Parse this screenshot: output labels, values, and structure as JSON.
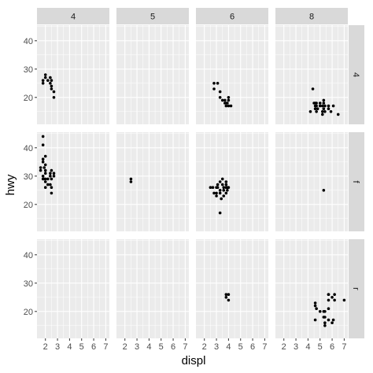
{
  "chart_data": {
    "type": "scatter",
    "layout": "facet_grid",
    "xlabel": "displ",
    "ylabel": "hwy",
    "xlim": [
      1.3,
      7.3
    ],
    "ylim": [
      10.5,
      45.5
    ],
    "x_ticks": [
      2,
      3,
      4,
      5,
      6,
      7
    ],
    "y_ticks": [
      20,
      30,
      40
    ],
    "col_facets": [
      "4",
      "5",
      "6",
      "8"
    ],
    "row_facets": [
      "4",
      "f",
      "r"
    ],
    "colors": {
      "panel_bg": "#ebebeb",
      "grid_major": "#ffffff",
      "strip_bg": "#d9d9d9",
      "point": "#000000",
      "tick_text": "#4d4d4d"
    },
    "panels": [
      {
        "col": "4",
        "row": "4",
        "points": [
          [
            1.8,
            26
          ],
          [
            1.8,
            25
          ],
          [
            2.0,
            28
          ],
          [
            2.0,
            27
          ],
          [
            2.2,
            26
          ],
          [
            2.4,
            27
          ],
          [
            2.4,
            25
          ],
          [
            2.5,
            26
          ],
          [
            2.5,
            24
          ],
          [
            2.5,
            23
          ],
          [
            2.7,
            20
          ],
          [
            2.7,
            22
          ]
        ]
      },
      {
        "col": "5",
        "row": "4",
        "points": []
      },
      {
        "col": "6",
        "row": "4",
        "points": [
          [
            2.8,
            25
          ],
          [
            2.8,
            23
          ],
          [
            3.1,
            25
          ],
          [
            3.3,
            22
          ],
          [
            3.3,
            20
          ],
          [
            3.5,
            19
          ],
          [
            3.7,
            18
          ],
          [
            3.7,
            19
          ],
          [
            3.8,
            18
          ],
          [
            3.8,
            17
          ],
          [
            3.9,
            18
          ],
          [
            4.0,
            20
          ],
          [
            4.0,
            19
          ],
          [
            4.0,
            17
          ],
          [
            4.2,
            17
          ]
        ]
      },
      {
        "col": "8",
        "row": "4",
        "points": [
          [
            4.2,
            15
          ],
          [
            4.4,
            23
          ],
          [
            4.5,
            18
          ],
          [
            4.6,
            17
          ],
          [
            4.6,
            18
          ],
          [
            4.6,
            16
          ],
          [
            4.7,
            17
          ],
          [
            4.7,
            18
          ],
          [
            4.7,
            15
          ],
          [
            4.8,
            16
          ],
          [
            5.0,
            17
          ],
          [
            5.0,
            18
          ],
          [
            5.2,
            14
          ],
          [
            5.2,
            15
          ],
          [
            5.2,
            17
          ],
          [
            5.3,
            19
          ],
          [
            5.3,
            18
          ],
          [
            5.3,
            16
          ],
          [
            5.4,
            17
          ],
          [
            5.4,
            15
          ],
          [
            5.7,
            16
          ],
          [
            5.7,
            17
          ],
          [
            5.9,
            15
          ],
          [
            6.1,
            17
          ],
          [
            6.5,
            14
          ]
        ]
      },
      {
        "col": "4",
        "row": "f",
        "points": [
          [
            1.6,
            33
          ],
          [
            1.6,
            32
          ],
          [
            1.8,
            36
          ],
          [
            1.8,
            35
          ],
          [
            1.8,
            29
          ],
          [
            1.8,
            30
          ],
          [
            1.8,
            44
          ],
          [
            1.8,
            41
          ],
          [
            1.9,
            29
          ],
          [
            1.9,
            33
          ],
          [
            2.0,
            29
          ],
          [
            2.0,
            31
          ],
          [
            2.0,
            32
          ],
          [
            2.0,
            26
          ],
          [
            2.0,
            28
          ],
          [
            2.2,
            27
          ],
          [
            2.2,
            29
          ],
          [
            2.4,
            31
          ],
          [
            2.4,
            30
          ],
          [
            2.4,
            27
          ],
          [
            2.5,
            29
          ],
          [
            2.5,
            26
          ],
          [
            2.5,
            32
          ],
          [
            2.5,
            24
          ],
          [
            2.7,
            30
          ],
          [
            2.7,
            31
          ],
          [
            2.0,
            34
          ],
          [
            2.0,
            37
          ]
        ]
      },
      {
        "col": "5",
        "row": "f",
        "points": [
          [
            2.5,
            29
          ],
          [
            2.5,
            28
          ]
        ]
      },
      {
        "col": "6",
        "row": "f",
        "points": [
          [
            2.5,
            26
          ],
          [
            2.7,
            26
          ],
          [
            2.8,
            24
          ],
          [
            3.0,
            26
          ],
          [
            3.0,
            24
          ],
          [
            3.0,
            23
          ],
          [
            3.1,
            27
          ],
          [
            3.1,
            26
          ],
          [
            3.3,
            25
          ],
          [
            3.3,
            28
          ],
          [
            3.3,
            24
          ],
          [
            3.4,
            22
          ],
          [
            3.5,
            29
          ],
          [
            3.5,
            27
          ],
          [
            3.6,
            26
          ],
          [
            3.6,
            25
          ],
          [
            3.6,
            23
          ],
          [
            3.8,
            28
          ],
          [
            3.8,
            26
          ],
          [
            3.8,
            24
          ],
          [
            3.8,
            27
          ],
          [
            3.9,
            25
          ],
          [
            3.9,
            26
          ],
          [
            4.0,
            26
          ],
          [
            3.3,
            17
          ]
        ]
      },
      {
        "col": "8",
        "row": "f",
        "points": [
          [
            5.3,
            25
          ]
        ]
      },
      {
        "col": "4",
        "row": "r",
        "points": []
      },
      {
        "col": "5",
        "row": "r",
        "points": []
      },
      {
        "col": "6",
        "row": "r",
        "points": [
          [
            3.8,
            26
          ],
          [
            3.8,
            25
          ],
          [
            4.0,
            26
          ],
          [
            4.0,
            24
          ]
        ]
      },
      {
        "col": "8",
        "row": "r",
        "points": [
          [
            4.6,
            17
          ],
          [
            4.6,
            22
          ],
          [
            4.6,
            23
          ],
          [
            4.7,
            21
          ],
          [
            5.0,
            20
          ],
          [
            5.3,
            18
          ],
          [
            5.3,
            20
          ],
          [
            5.4,
            20
          ],
          [
            5.4,
            18
          ],
          [
            5.4,
            15
          ],
          [
            5.4,
            16
          ],
          [
            5.7,
            26
          ],
          [
            5.7,
            24
          ],
          [
            5.7,
            17
          ],
          [
            5.7,
            21
          ],
          [
            6.0,
            16
          ],
          [
            6.0,
            25
          ],
          [
            6.1,
            17
          ],
          [
            6.2,
            26
          ],
          [
            6.2,
            24
          ],
          [
            7.0,
            24
          ],
          [
            5.7,
            26
          ]
        ]
      }
    ]
  }
}
